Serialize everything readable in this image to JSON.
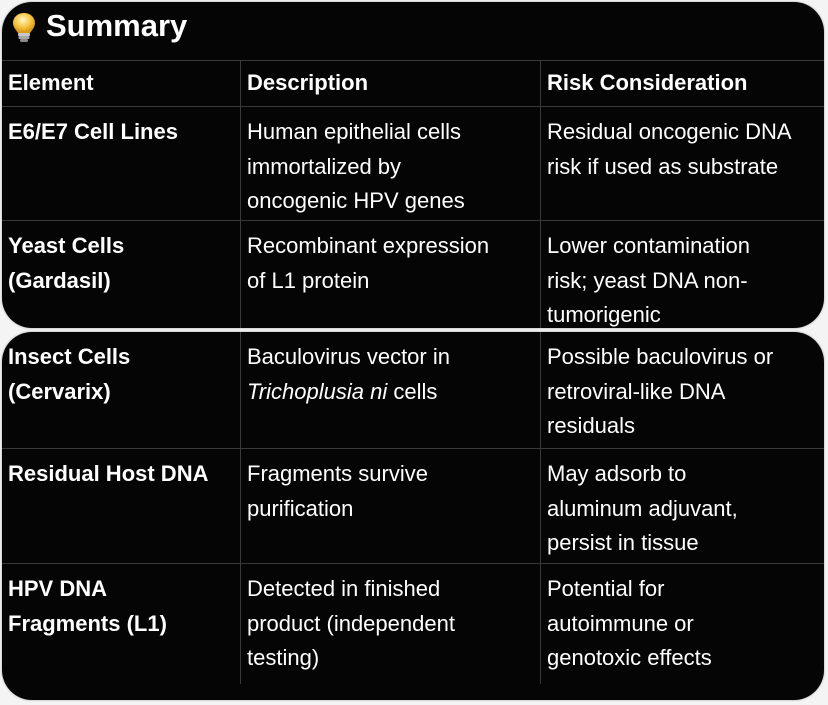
{
  "summary": {
    "icon": "lightbulb-icon",
    "title": "Summary"
  },
  "table": {
    "headers": [
      "Element",
      "Description",
      "Risk Consideration"
    ],
    "rows": [
      {
        "element": "E6/E7 Cell Lines",
        "description": "Human epithelial cells\nimmortalized by\noncogenic HPV genes",
        "risk": "Residual oncogenic DNA\nrisk if used as substrate"
      },
      {
        "element": "Yeast Cells\n(Gardasil)",
        "description": "Recombinant expression\nof L1 protein",
        "risk": "Lower contamination\nrisk; yeast DNA non-\ntumorigenic"
      },
      {
        "element": "Insect Cells\n(Cervarix)",
        "description_line1": "Baculovirus vector in",
        "description_italic": "Trichoplusia ni",
        "description_tail": " cells",
        "risk": "Possible baculovirus or\nretroviral-like DNA\nresiduals"
      },
      {
        "element": "Residual Host DNA",
        "description": "Fragments survive\npurification",
        "risk": "May adsorb to\naluminum adjuvant,\npersist in tissue"
      },
      {
        "element": "HPV DNA\nFragments (L1)",
        "description": "Detected in finished\nproduct (independent\ntesting)",
        "risk": "Potential for\nautoimmune or\ngenotoxic effects"
      }
    ]
  },
  "colors": {
    "card_background": "#050505",
    "text": "#ffffff",
    "grid_line": "#3a3a3a",
    "bulb": "#f5c542"
  }
}
